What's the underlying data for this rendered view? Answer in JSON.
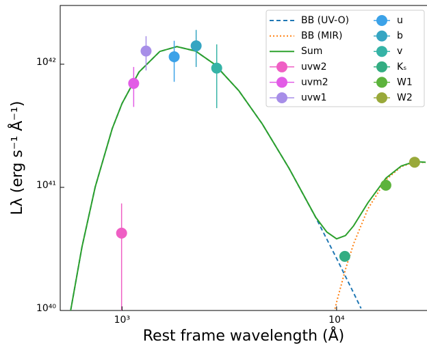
{
  "chart_data": {
    "type": "line",
    "xlabel": "Rest frame wavelength (Å)",
    "ylabel": "Lλ (erg s⁻¹ Å⁻¹)",
    "xscale": "log",
    "yscale": "log",
    "xlim": [
      515,
      26000
    ],
    "ylim": [
      1e+40,
      3e+42
    ],
    "xticks": [
      {
        "value": 1000,
        "label": "10³"
      },
      {
        "value": 10000,
        "label": "10⁴"
      }
    ],
    "yticks": [
      {
        "value": 1e+40,
        "label": "10⁴⁰"
      },
      {
        "value": 1e+41,
        "label": "10⁴¹"
      },
      {
        "value": 1e+42,
        "label": "10⁴²"
      }
    ],
    "legend": "upper right",
    "series": [
      {
        "name": "BB (UV-O)",
        "color": "#1f77b4",
        "style": "dashed",
        "x": [
          576,
          650,
          750,
          900,
          1000,
          1200,
          1500,
          1800,
          2200,
          2700,
          3500,
          4500,
          6000,
          8000,
          10000,
          12000,
          13000
        ],
        "values": [
          1e+40,
          3.26e+40,
          1.01e+41,
          3e+41,
          4.8e+41,
          8.65e+41,
          1.27e+42,
          1.39e+42,
          1.28e+42,
          9.98e+41,
          6.1e+41,
          3.28e+41,
          1.43e+41,
          5.68e+40,
          2.65e+40,
          1.39e+40,
          1.04e+40
        ]
      },
      {
        "name": "BB (MIR)",
        "color": "#ff7f0e",
        "style": "dotted",
        "x": [
          9500,
          10000,
          11000,
          12000,
          14000,
          17000,
          20000,
          23100,
          26000
        ],
        "values": [
          8.05e+39,
          1.17e+40,
          2.16e+40,
          3.48e+40,
          6.7e+40,
          1.153e+41,
          1.472e+41,
          1.607e+41,
          1.59e+41
        ]
      },
      {
        "name": "Sum",
        "color": "#2ca02c",
        "style": "solid",
        "x": [
          576,
          650,
          750,
          900,
          1000,
          1200,
          1500,
          1800,
          2200,
          2700,
          3500,
          4500,
          6000,
          8000,
          9000,
          10000,
          11000,
          12000,
          14000,
          17000,
          20000,
          23100,
          26000
        ],
        "values": [
          1e+40,
          3.26e+40,
          1.01e+41,
          3e+41,
          4.8e+41,
          8.65e+41,
          1.27e+42,
          1.39e+42,
          1.28e+42,
          9.98e+41,
          6.1e+41,
          3.28e+41,
          1.43e+41,
          5.7e+40,
          4.34e+40,
          3.82e+40,
          4.06e+40,
          4.87e+40,
          7.5e+40,
          1.19e+41,
          1.49e+41,
          1.62e+41,
          1.6e+41
        ]
      },
      {
        "name": "uvw2",
        "color": "#ef5fc4",
        "style": "point",
        "x": 995,
        "value": 4.25e+40,
        "err_low": 5e+39,
        "err_high": 7.4e+40
      },
      {
        "name": "uvm2",
        "color": "#e25ce6",
        "style": "point",
        "x": 1133,
        "value": 6.99e+41,
        "err_low": 4.5e+41,
        "err_high": 9.5e+41
      },
      {
        "name": "uvw1",
        "color": "#a78ee8",
        "style": "point",
        "x": 1294,
        "value": 1.28e+42,
        "err_low": 8.9e+41,
        "err_high": 1.69e+42
      },
      {
        "name": "u",
        "color": "#3ca2e8",
        "style": "point",
        "x": 1750,
        "value": 1.15e+42,
        "err_low": 7.2e+41,
        "err_high": 1.55e+42
      },
      {
        "name": "b",
        "color": "#35a5c2",
        "style": "point",
        "x": 2215,
        "value": 1.41e+42,
        "err_low": 9.5e+41,
        "err_high": 1.9e+42
      },
      {
        "name": "v",
        "color": "#35b3a6",
        "style": "point",
        "x": 2762,
        "value": 9.3e+41,
        "err_low": 4.4e+41,
        "err_high": 1.45e+42
      },
      {
        "name": "Kₛ",
        "color": "#33ad82",
        "style": "point",
        "x": 10920,
        "value": 2.75e+40
      },
      {
        "name": "W1",
        "color": "#5cb33c",
        "style": "point",
        "x": 16970,
        "value": 1.04e+41
      },
      {
        "name": "W2",
        "color": "#99a93a",
        "style": "point",
        "x": 23100,
        "value": 1.6e+41
      }
    ]
  }
}
